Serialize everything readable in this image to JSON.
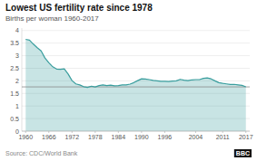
{
  "chart_data": {
    "type": "area",
    "title": "Lowest US fertility rate since 1978",
    "subtitle": "Births per woman 1960-2017",
    "source": "Source: CDC/World Bank",
    "annotations": [
      "BBC"
    ],
    "x": [
      1960,
      1961,
      1962,
      1963,
      1964,
      1965,
      1966,
      1967,
      1968,
      1969,
      1970,
      1971,
      1972,
      1973,
      1974,
      1975,
      1976,
      1977,
      1978,
      1979,
      1980,
      1981,
      1982,
      1983,
      1984,
      1985,
      1986,
      1987,
      1988,
      1989,
      1990,
      1991,
      1992,
      1993,
      1994,
      1995,
      1996,
      1997,
      1998,
      1999,
      2000,
      2001,
      2002,
      2003,
      2004,
      2005,
      2006,
      2007,
      2008,
      2009,
      2010,
      2011,
      2012,
      2013,
      2014,
      2015,
      2016,
      2017
    ],
    "values": [
      3.65,
      3.62,
      3.46,
      3.32,
      3.19,
      2.91,
      2.72,
      2.56,
      2.47,
      2.46,
      2.48,
      2.27,
      2.01,
      1.88,
      1.84,
      1.77,
      1.74,
      1.79,
      1.76,
      1.81,
      1.84,
      1.81,
      1.83,
      1.8,
      1.81,
      1.84,
      1.84,
      1.87,
      1.93,
      2.01,
      2.08,
      2.07,
      2.05,
      2.02,
      2.0,
      1.98,
      1.98,
      1.97,
      1.99,
      2.0,
      2.06,
      2.03,
      2.01,
      2.04,
      2.05,
      2.05,
      2.1,
      2.12,
      2.08,
      2.0,
      1.93,
      1.9,
      1.88,
      1.86,
      1.86,
      1.84,
      1.82,
      1.76
    ],
    "color": "#3a9e9e",
    "reference_line": {
      "value": 1.76,
      "color": "#888888"
    },
    "xlim": [
      1959,
      2018
    ],
    "ylim": [
      0,
      4.1
    ],
    "xticks": [
      1960,
      1966,
      1972,
      1978,
      1984,
      1990,
      1996,
      2004,
      2011,
      2017
    ],
    "yticks": [
      0,
      0.5,
      1.0,
      1.5,
      2.0,
      2.5,
      3.0,
      3.5,
      4.0
    ],
    "grid": true
  }
}
